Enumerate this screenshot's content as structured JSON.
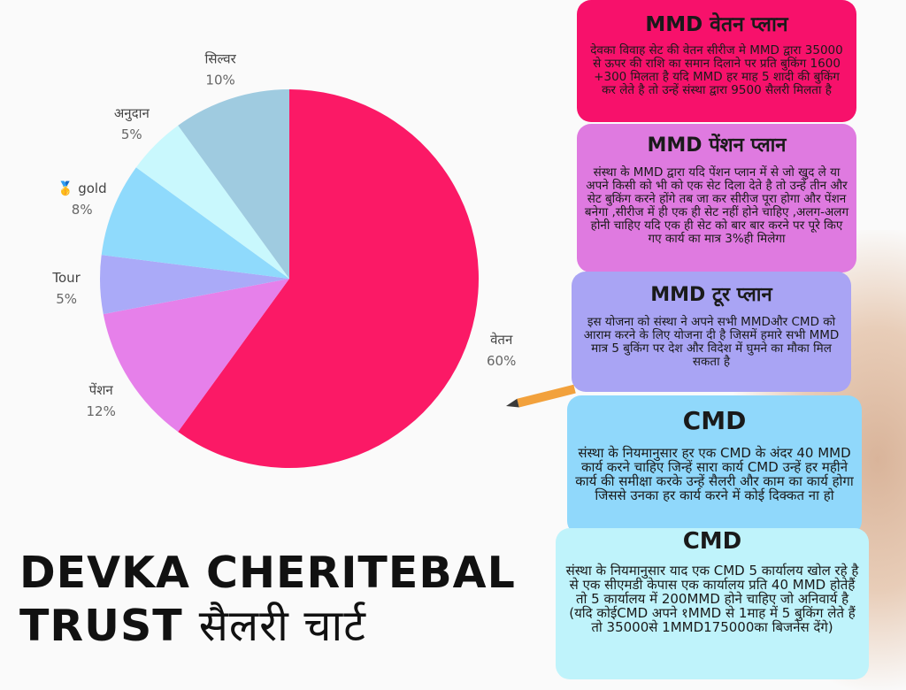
{
  "chart_data": {
    "type": "pie",
    "slices": [
      {
        "label": "वेतन",
        "value": 60,
        "pct_label": "60%",
        "color": "#fb1966"
      },
      {
        "label": "पेंशन",
        "value": 12,
        "pct_label": "12%",
        "color": "#e680ea"
      },
      {
        "label": "Tour",
        "value": 5,
        "pct_label": "5%",
        "color": "#aaaaf8"
      },
      {
        "label": "🥇 gold",
        "value": 8,
        "pct_label": "8%",
        "color": "#8fdafc"
      },
      {
        "label": "अनुदान",
        "value": 5,
        "pct_label": "5%",
        "color": "#c9f8fd"
      },
      {
        "label": "सिल्वर",
        "value": 10,
        "pct_label": "10%",
        "color": "#9fcbe0"
      }
    ]
  },
  "cards": [
    {
      "title": "MMD वेतन प्लान",
      "text": "देवका विवाह सेट की वेतन सीरीज मे MMD द्वारा 35000 से ऊपर की राशि का समान दिलाने पर प्रति बुकिंग 1600 +300 मिलता है यदि MMD हर माह 5 शादी की बुकिंग कर लेते है तो उन्हें संस्था द्वारा 9500 सैलरी मिलता है"
    },
    {
      "title": "MMD पेंशन प्लान",
      "text": "संस्था के MMD द्वारा यदि पेंशन प्लान में से जो खुद ले या अपने किसी को भी को एक सेट दिला देते है तो उन्हें तीन और सेट बुकिंग करने होंगे तब जा कर सीरीज पूरा होगा और पेंशन बनेगा ,सीरीज में ही एक ही सेट नहीं होने चाहिए ,अलग-अलग होनी चाहिए यदि एक ही सेट को बार बार करने पर पूरे किए गए कार्य का मात्र 3%ही मिलेगा"
    },
    {
      "title": "MMD टूर प्लान",
      "text": "इस योजना को संस्था ने अपने सभी MMDऔर CMD को आराम करने के लिए योजना दी है जिसमें हमारे सभी MMD मात्र 5 बुकिंग पर देश और विदेश में घुमने का मौका मिल सकता है"
    },
    {
      "title": "CMD",
      "text": "संस्था के नियमानुसार हर एक CMD के अंदर 40 MMD कार्य करने चाहिए जिन्हें सारा कार्य CMD उन्हें हर महीने कार्य की समीक्षा करके उन्हें सैलरी और काम का कार्य होगा जिससे उनका हर कार्य करने में कोई दिक्कत ना हो"
    },
    {
      "title": "CMD",
      "text": "संस्था के नियमानुसार याद एक CMD 5 कार्यालय खोल रहे है से एक सीएमडी केपास एक कार्यालय प्रति 40 MMD होतेहैं तो 5 कार्यालय में 200MMD होने चाहिए जो अनिवार्य है (यदि कोईCMD अपने १MMD से 1माह में 5 बुकिंग लेते हैं तो 35000से 1MMD175000का बिजनेस देंगे)"
    }
  ],
  "title_line1": "DEVKA CHERITEBAL",
  "title_line2_latin": "TRUST",
  "title_line2_hindi": "सैलरी चार्ट"
}
